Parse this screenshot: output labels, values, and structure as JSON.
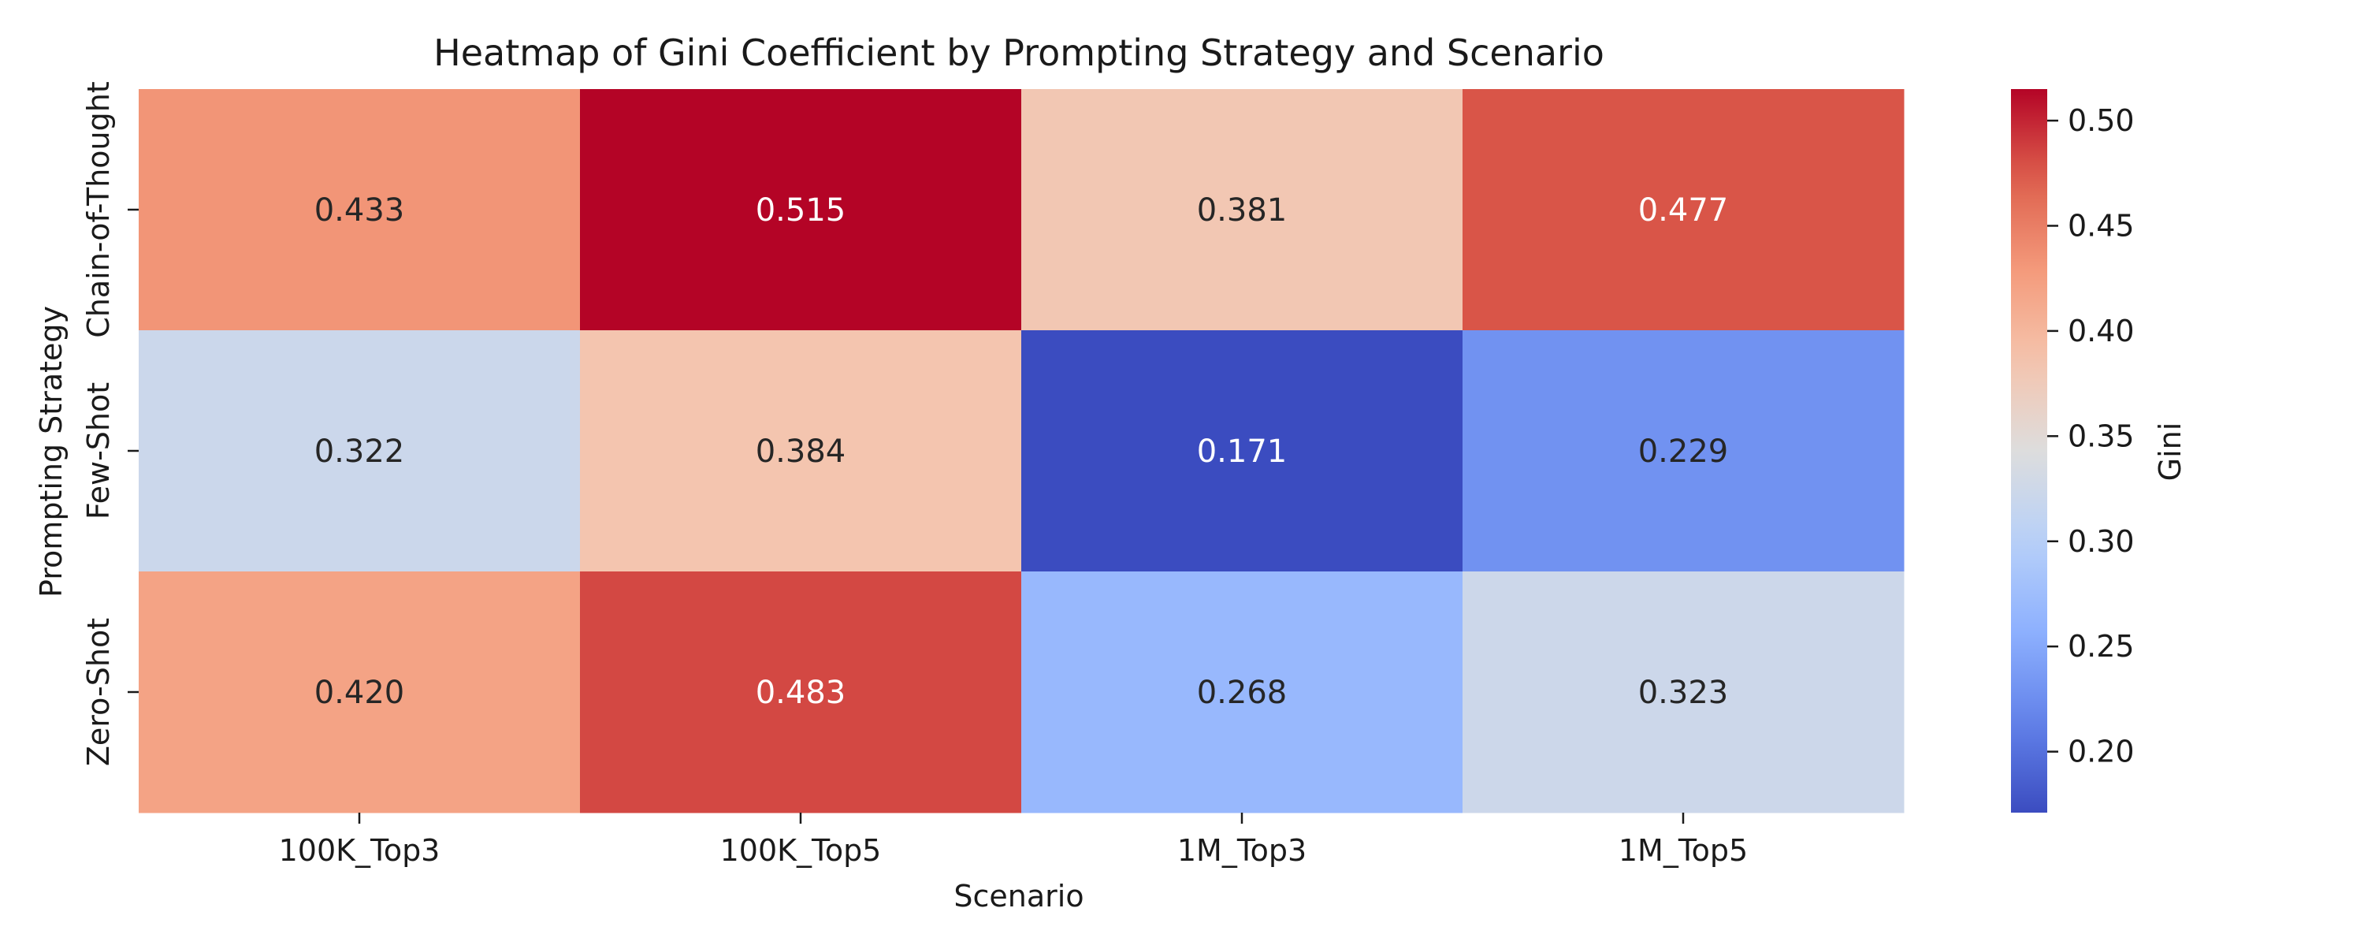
{
  "chart_data": {
    "type": "heatmap",
    "title": "Heatmap of Gini Coefficient by Prompting Strategy and Scenario",
    "xlabel": "Scenario",
    "ylabel": "Prompting Strategy",
    "x_categories": [
      "100K_Top3",
      "100K_Top5",
      "1M_Top3",
      "1M_Top5"
    ],
    "y_categories": [
      "Chain-of-Thought",
      "Few-Shot",
      "Zero-Shot"
    ],
    "values": [
      [
        0.433,
        0.515,
        0.381,
        0.477
      ],
      [
        0.322,
        0.384,
        0.171,
        0.229
      ],
      [
        0.42,
        0.483,
        0.268,
        0.323
      ]
    ],
    "cell_labels": [
      [
        "0.433",
        "0.515",
        "0.381",
        "0.477"
      ],
      [
        "0.322",
        "0.384",
        "0.171",
        "0.229"
      ],
      [
        "0.420",
        "0.483",
        "0.268",
        "0.323"
      ]
    ],
    "colormap": "coolwarm",
    "colorbar": {
      "label": "Gini",
      "range": [
        0.171,
        0.515
      ],
      "ticks": [
        0.2,
        0.25,
        0.3,
        0.35,
        0.4,
        0.45,
        0.5
      ],
      "tick_labels": [
        "0.20",
        "0.25",
        "0.30",
        "0.35",
        "0.40",
        "0.45",
        "0.50"
      ]
    }
  }
}
